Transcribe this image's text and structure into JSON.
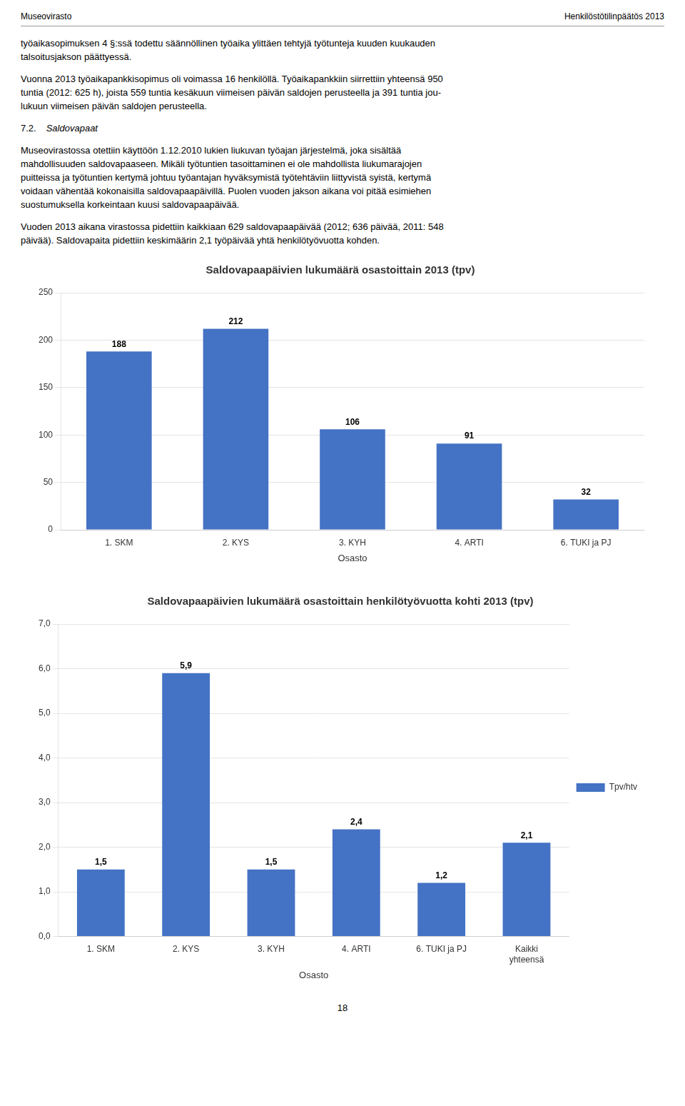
{
  "header_left": "Museovirasto",
  "header_right": "Henkilöstötilinpäätös 2013",
  "text_blocks": [
    {
      "kind": "paragraph",
      "text": "työaikasopimuksen 4 §:ssä todettu säännöllinen työaika ylittäen tehtyjä työtunteja kuuden kuukauden\ntalsoitusjakson päättyessä."
    },
    {
      "kind": "paragraph",
      "text": "Vuonna 2013 työaikapankkisopimus oli voimassa 16 henkilöllä. Työaikapankkiin siirrettiin yhteensä 950\ntuntia (2012: 625 h), joista 559 tuntia kesäkuun viimeisen päivän saldojen perusteella ja 391 tuntia jou-\nlukuun viimeisen päivän saldojen perusteella."
    },
    {
      "kind": "heading",
      "number": "7.2.",
      "text": "Saldovapaat"
    },
    {
      "kind": "paragraph",
      "text": "Museovirastossa otettiin käyttöön 1.12.2010 lukien liukuvan työajan järjestelmä, joka sisältää\nmahdollisuuden saldovapaaseen. Mikäli työtuntien tasoittaminen ei ole mahdollista liukumarajojen\npuitteissa ja työtuntien kertymä johtuu työantajan hyväksymistä työtehtäviin liittyvistä syistä, kertymä\nvoidaan vähentää kokonaisilla saldovapaapäivillä. Puolen vuoden jakson aikana voi pitää esimiehen\nsuostumuksella korkeintaan kuusi saldovapaapäivää."
    },
    {
      "kind": "paragraph",
      "text": "Vuoden 2013 aikana virastossa pidettiin kaikkiaan 629 saldovapaapäivää (2012; 636 päivää, 2011: 548\npäivää). Saldovapaita pidettiin keskimäärin 2,1 työpäivää yhtä henkilötyövuotta kohden."
    }
  ],
  "page_number": "18",
  "chart_data": [
    {
      "type": "bar",
      "title": "Saldovapaapäivien lukumäärä osastoittain 2013 (tpv)",
      "xlabel": "Osasto",
      "categories": [
        "1. SKM",
        "2. KYS",
        "3. KYH",
        "4. ARTI",
        "6. TUKI ja PJ"
      ],
      "values": [
        188,
        212,
        106,
        91,
        32
      ],
      "color": "#4472C4",
      "ylim": [
        0,
        250
      ],
      "yticks": [
        0,
        50,
        100,
        150,
        200,
        250
      ],
      "grid": true,
      "data_labels": true
    },
    {
      "type": "bar",
      "title": "Saldovapaapäivien lukumäärä osastoittain henkilötyövuotta kohti 2013 (tpv)",
      "xlabel": "Osasto",
      "categories": [
        "1. SKM",
        "2. KYS",
        "3. KYH",
        "4. ARTI",
        "6. TUKI ja PJ",
        "Kaikki\nyhteensä"
      ],
      "series": [
        {
          "name": "Tpv/htv",
          "color": "#4472C4",
          "values": [
            1.5,
            5.9,
            1.5,
            2.4,
            1.2,
            2.1
          ],
          "value_labels": [
            "1,5",
            "5,9",
            "1,5",
            "2,4",
            "1,2",
            "2,1"
          ]
        }
      ],
      "ylim": [
        0,
        7.0
      ],
      "yticks": [
        {
          "value": 0.0,
          "label": "0,0"
        },
        {
          "value": 1.0,
          "label": "1,0"
        },
        {
          "value": 2.0,
          "label": "2,0"
        },
        {
          "value": 3.0,
          "label": "3,0"
        },
        {
          "value": 4.0,
          "label": "4,0"
        },
        {
          "value": 5.0,
          "label": "5,0"
        },
        {
          "value": 6.0,
          "label": "6,0"
        },
        {
          "value": 7.0,
          "label": "7,0"
        }
      ],
      "grid": true,
      "legend": "right",
      "data_labels": true
    }
  ]
}
